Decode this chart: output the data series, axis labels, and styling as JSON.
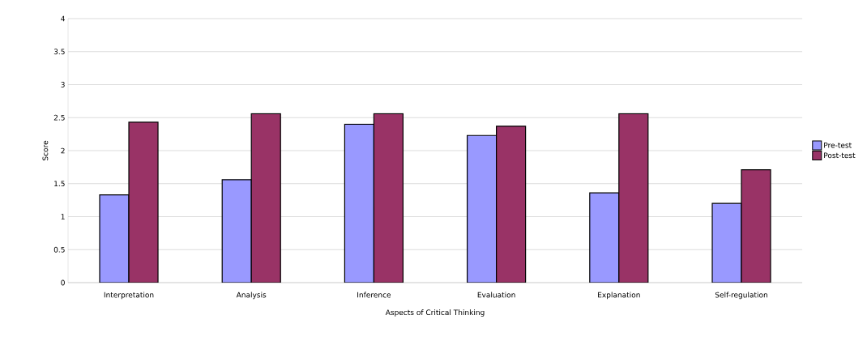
{
  "chart_data": {
    "type": "bar",
    "xlabel": "Aspects of Critical Thinking",
    "ylabel": "Score",
    "categories": [
      "Interpretation",
      "Analysis",
      "Inference",
      "Evaluation",
      "Explanation",
      "Self-regulation"
    ],
    "series": [
      {
        "name": "Pre-test",
        "color": "#9999ff",
        "values": [
          1.33,
          1.56,
          2.4,
          2.23,
          1.36,
          1.2
        ]
      },
      {
        "name": "Post-test",
        "color": "#993366",
        "values": [
          2.43,
          2.56,
          2.56,
          2.37,
          2.56,
          1.71
        ]
      }
    ],
    "ylim": [
      0,
      4
    ],
    "yticks": [
      0,
      0.5,
      1,
      1.5,
      2,
      2.5,
      3,
      3.5,
      4
    ],
    "grid": "y",
    "legend": "right"
  }
}
